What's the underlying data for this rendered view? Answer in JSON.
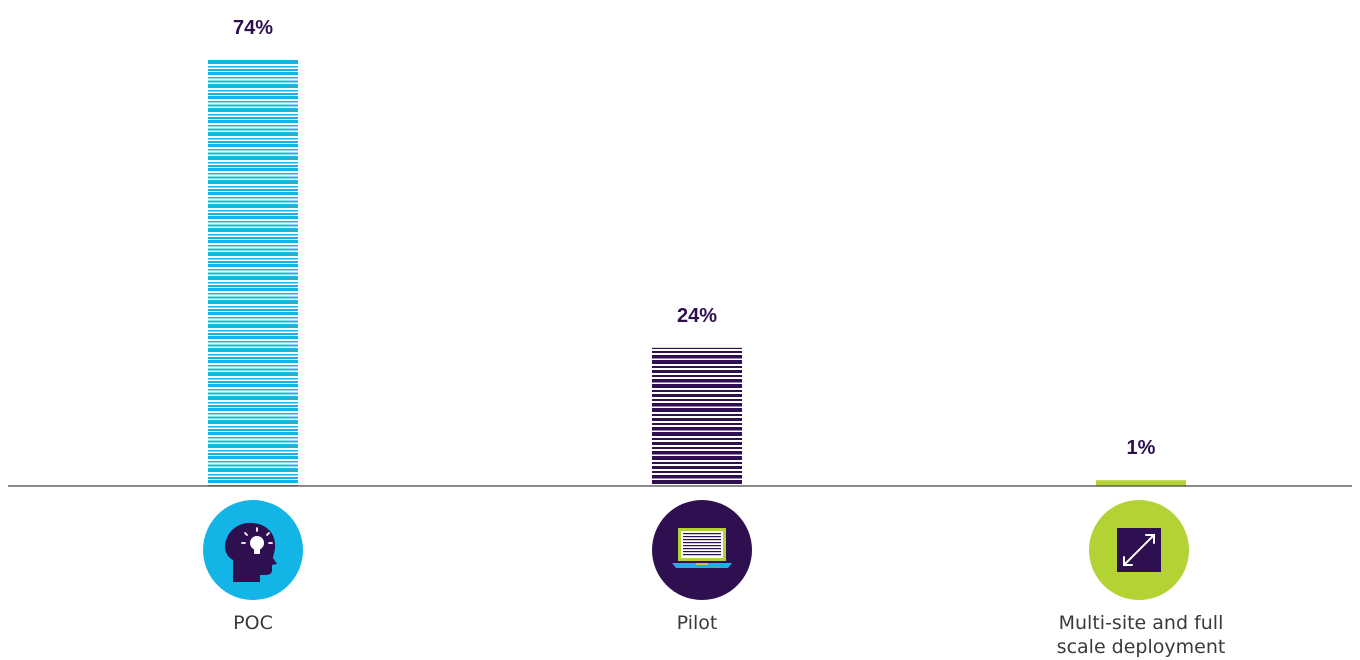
{
  "chart_data": {
    "type": "bar",
    "categories": [
      "POC",
      "Pilot",
      "Multi-site and full scale deployment"
    ],
    "values": [
      74,
      24,
      1
    ],
    "value_labels": [
      "74%",
      "24%",
      "1%"
    ],
    "ylim": [
      0,
      74
    ],
    "grid": false,
    "colors": [
      "#12b5e6",
      "#2e0f4f",
      "#b3d334"
    ],
    "label_color": "#2e0f4f",
    "icons": [
      "head-lightbulb-icon",
      "laptop-binary-icon",
      "diagonal-arrow-expand-icon"
    ]
  },
  "labels": {
    "poc": "POC",
    "pilot": "Pilot",
    "multisite_line1": "Multi-site and full",
    "multisite_line2": "scale deployment"
  }
}
